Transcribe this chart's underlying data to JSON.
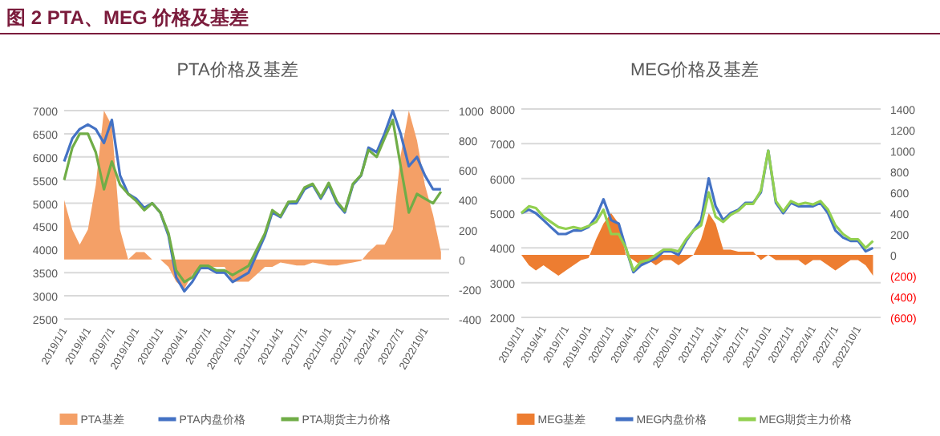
{
  "chart_data": [
    {
      "type": "line",
      "annotations": [
        "图 2 PTA、MEG 价格及基差"
      ],
      "title": "PTA价格及基差",
      "x": [
        "2019-01",
        "2019-02",
        "2019-03",
        "2019-04",
        "2019-05",
        "2019-06",
        "2019-07",
        "2019-08",
        "2019-09",
        "2019-10",
        "2019-11",
        "2019-12",
        "2020-01",
        "2020-02",
        "2020-03",
        "2020-04",
        "2020-05",
        "2020-06",
        "2020-07",
        "2020-08",
        "2020-09",
        "2020-10",
        "2020-11",
        "2020-12",
        "2021-01",
        "2021-02",
        "2021-03",
        "2021-04",
        "2021-05",
        "2021-06",
        "2021-07",
        "2021-08",
        "2021-09",
        "2021-10",
        "2021-11",
        "2021-12",
        "2022-01",
        "2022-02",
        "2022-03",
        "2022-04",
        "2022-05",
        "2022-06",
        "2022-07",
        "2022-08",
        "2022-09",
        "2022-10",
        "2022-11",
        "2022-12"
      ],
      "series": [
        {
          "name": "PTA基差",
          "type": "area",
          "axis": "y2",
          "color": "#f4a067",
          "values": [
            400,
            200,
            100,
            200,
            500,
            1000,
            900,
            200,
            0,
            50,
            50,
            0,
            0,
            -50,
            -150,
            -200,
            -100,
            -50,
            -50,
            -50,
            -50,
            -150,
            -150,
            -150,
            -100,
            -50,
            -50,
            -20,
            -30,
            -40,
            -40,
            -20,
            -30,
            -40,
            -40,
            -30,
            -20,
            -10,
            50,
            100,
            100,
            200,
            700,
            1000,
            800,
            500,
            300,
            50
          ]
        },
        {
          "name": "PTA内盘价格",
          "type": "line",
          "color": "#4472c4",
          "values": [
            5900,
            6400,
            6600,
            6700,
            6600,
            6300,
            6800,
            5600,
            5200,
            5100,
            4900,
            5000,
            4800,
            4300,
            3400,
            3100,
            3300,
            3600,
            3600,
            3500,
            3500,
            3300,
            3400,
            3500,
            3900,
            4300,
            4800,
            4700,
            5000,
            5000,
            5300,
            5400,
            5100,
            5400,
            5000,
            4800,
            5400,
            5600,
            6200,
            6100,
            6500,
            7000,
            6500,
            5800,
            6000,
            5600,
            5300,
            5300
          ]
        },
        {
          "name": "PTA期货主力价格",
          "type": "line",
          "color": "#70ad47",
          "values": [
            5500,
            6200,
            6500,
            6500,
            6100,
            5300,
            5900,
            5400,
            5200,
            5050,
            4850,
            5000,
            4800,
            4350,
            3550,
            3300,
            3400,
            3650,
            3650,
            3550,
            3550,
            3450,
            3550,
            3650,
            4000,
            4350,
            4850,
            4720,
            5030,
            5040,
            5340,
            5420,
            5130,
            5440,
            5040,
            4830,
            5420,
            5610,
            6150,
            6000,
            6400,
            6800,
            5800,
            4800,
            5200,
            5100,
            5000,
            5250
          ]
        }
      ],
      "xlim": [
        "2019-01-01",
        "2023-01-01"
      ],
      "xticks": [
        {
          "value": "2019-01-01",
          "label": "2019/1/1"
        },
        {
          "value": "2019-04-01",
          "label": "2019/4/1"
        },
        {
          "value": "2019-07-01",
          "label": "2019/7/1"
        },
        {
          "value": "2019-10-01",
          "label": "2019/10/1"
        },
        {
          "value": "2020-01-01",
          "label": "2020/1/1"
        },
        {
          "value": "2020-04-01",
          "label": "2020/4/1"
        },
        {
          "value": "2020-07-01",
          "label": "2020/7/1"
        },
        {
          "value": "2020-10-01",
          "label": "2020/10/1"
        },
        {
          "value": "2021-01-01",
          "label": "2021/1/1"
        },
        {
          "value": "2021-04-01",
          "label": "2021/4/1"
        },
        {
          "value": "2021-07-01",
          "label": "2021/7/1"
        },
        {
          "value": "2021-10-01",
          "label": "2021/10/1"
        },
        {
          "value": "2022-01-01",
          "label": "2022/1/1"
        },
        {
          "value": "2022-04-01",
          "label": "2022/4/1"
        },
        {
          "value": "2022-07-01",
          "label": "2022/7/1"
        },
        {
          "value": "2022-10-01",
          "label": "2022/10/1"
        }
      ],
      "ylim": [
        2500,
        7000
      ],
      "yticks": [
        2500,
        3000,
        3500,
        4000,
        4500,
        5000,
        5500,
        6000,
        6500,
        7000
      ],
      "y2lim": [
        -400,
        1000
      ],
      "y2ticks": [
        -400,
        -200,
        0,
        200,
        400,
        600,
        800,
        1000
      ],
      "grid": "y",
      "legend": "bottom"
    },
    {
      "type": "line",
      "title": "MEG价格及基差",
      "x": [
        "2019-01",
        "2019-02",
        "2019-03",
        "2019-04",
        "2019-05",
        "2019-06",
        "2019-07",
        "2019-08",
        "2019-09",
        "2019-10",
        "2019-11",
        "2019-12",
        "2020-01",
        "2020-02",
        "2020-03",
        "2020-04",
        "2020-05",
        "2020-06",
        "2020-07",
        "2020-08",
        "2020-09",
        "2020-10",
        "2020-11",
        "2020-12",
        "2021-01",
        "2021-02",
        "2021-03",
        "2021-04",
        "2021-05",
        "2021-06",
        "2021-07",
        "2021-08",
        "2021-09",
        "2021-10",
        "2021-11",
        "2021-12",
        "2022-01",
        "2022-02",
        "2022-03",
        "2022-04",
        "2022-05",
        "2022-06",
        "2022-07",
        "2022-08",
        "2022-09",
        "2022-10",
        "2022-11",
        "2022-12"
      ],
      "series": [
        {
          "name": "MEG基差",
          "type": "area",
          "axis": "y2",
          "color": "#ed7d31",
          "values": [
            0,
            -100,
            -150,
            -100,
            -150,
            -200,
            -150,
            -100,
            -50,
            -30,
            150,
            300,
            400,
            300,
            0,
            -50,
            -100,
            -50,
            -100,
            -50,
            -50,
            -100,
            -50,
            0,
            150,
            400,
            300,
            50,
            50,
            30,
            30,
            30,
            -50,
            0,
            -50,
            -50,
            -50,
            -50,
            -100,
            -50,
            -50,
            -100,
            -150,
            -100,
            -50,
            -50,
            -100,
            -200
          ]
        },
        {
          "name": "MEG内盘价格",
          "type": "line",
          "color": "#4472c4",
          "values": [
            5000,
            5100,
            5000,
            4800,
            4600,
            4400,
            4400,
            4500,
            4500,
            4600,
            4900,
            5400,
            4800,
            4700,
            4000,
            3300,
            3500,
            3600,
            3700,
            3900,
            3900,
            3800,
            4200,
            4500,
            4800,
            6000,
            5200,
            4800,
            5000,
            5100,
            5300,
            5300,
            5600,
            6800,
            5300,
            5000,
            5300,
            5200,
            5200,
            5200,
            5300,
            5000,
            4500,
            4300,
            4200,
            4200,
            3900,
            4000
          ]
        },
        {
          "name": "MEG期货主力价格",
          "type": "line",
          "color": "#92d050",
          "values": [
            5000,
            5200,
            5150,
            4900,
            4750,
            4600,
            4550,
            4600,
            4550,
            4630,
            4750,
            5100,
            4400,
            4400,
            4000,
            3350,
            3600,
            3650,
            3800,
            3950,
            3950,
            3900,
            4250,
            4500,
            4650,
            5600,
            4900,
            4750,
            4950,
            5070,
            5270,
            5270,
            5650,
            6800,
            5350,
            5050,
            5350,
            5250,
            5300,
            5250,
            5350,
            5100,
            4650,
            4400,
            4250,
            4250,
            4000,
            4200
          ]
        }
      ],
      "xlim": [
        "2019-01-01",
        "2023-01-01"
      ],
      "xticks": [
        {
          "value": "2019-01-01",
          "label": "2019/1/1"
        },
        {
          "value": "2019-04-01",
          "label": "2019/4/1"
        },
        {
          "value": "2019-07-01",
          "label": "2019/7/1"
        },
        {
          "value": "2019-10-01",
          "label": "2019/10/1"
        },
        {
          "value": "2020-01-01",
          "label": "2020/1/1"
        },
        {
          "value": "2020-04-01",
          "label": "2020/4/1"
        },
        {
          "value": "2020-07-01",
          "label": "2020/7/1"
        },
        {
          "value": "2020-10-01",
          "label": "2020/10/1"
        },
        {
          "value": "2021-01-01",
          "label": "2021/1/1"
        },
        {
          "value": "2021-04-01",
          "label": "2021/4/1"
        },
        {
          "value": "2021-07-01",
          "label": "2021/7/1"
        },
        {
          "value": "2021-10-01",
          "label": "2021/10/1"
        },
        {
          "value": "2022-01-01",
          "label": "2022/1/1"
        },
        {
          "value": "2022-04-01",
          "label": "2022/4/1"
        },
        {
          "value": "2022-07-01",
          "label": "2022/7/1"
        },
        {
          "value": "2022-10-01",
          "label": "2022/10/1"
        }
      ],
      "ylim": [
        2000,
        8000
      ],
      "yticks": [
        2000,
        3000,
        4000,
        5000,
        6000,
        7000,
        8000
      ],
      "y2lim": [
        -600,
        1400
      ],
      "y2ticks": [
        {
          "value": -600,
          "label": "(600)"
        },
        {
          "value": -400,
          "label": "(400)"
        },
        {
          "value": -200,
          "label": "(200)"
        },
        0,
        200,
        400,
        600,
        800,
        1000,
        1200,
        1400
      ],
      "grid": "y",
      "legend": "bottom"
    }
  ]
}
